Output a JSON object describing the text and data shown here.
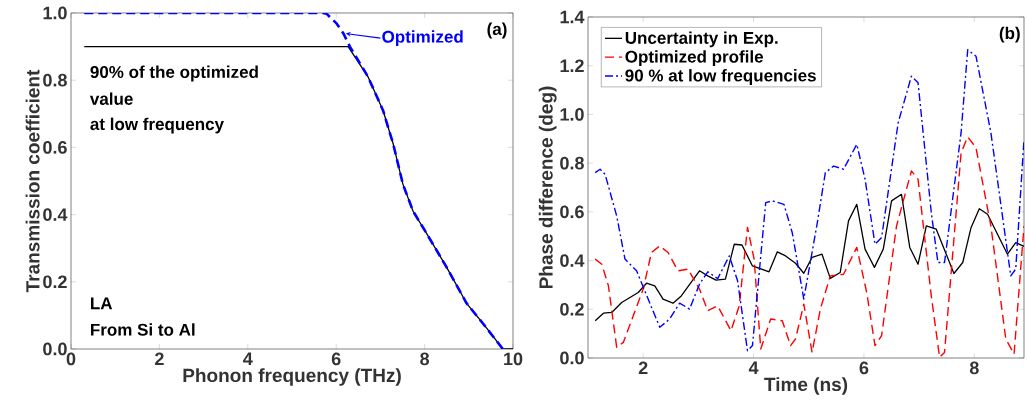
{
  "chart_data": [
    {
      "type": "line",
      "xlabel": "Phonon frequency (THz)",
      "ylabel": "Transmission coefficient",
      "xlim": [
        0,
        10
      ],
      "ylim": [
        0,
        1
      ],
      "xticks": [
        0,
        2,
        4,
        6,
        8,
        10
      ],
      "yticks": [
        {
          "value": 0,
          "label": "0.0"
        },
        {
          "value": 0.2,
          "label": "0.2"
        },
        {
          "value": 0.4,
          "label": "0.4"
        },
        {
          "value": 0.6,
          "label": "0.6"
        },
        {
          "value": 0.8,
          "label": "0.8"
        },
        {
          "value": 1,
          "label": "1.0"
        }
      ],
      "series": [
        {
          "color": "#000000",
          "line_style": "solid",
          "x": [
            0.3,
            6.27,
            6.72,
            7.06,
            7.29,
            7.51,
            7.74,
            8.04,
            8.49,
            8.95,
            9.32,
            9.77,
            10.0
          ],
          "values": [
            0.9,
            0.9,
            0.81,
            0.71,
            0.61,
            0.49,
            0.41,
            0.345,
            0.245,
            0.136,
            0.076,
            0.0,
            0.0
          ]
        },
        {
          "color": "#0000ff",
          "line_style": "dashed",
          "x": [
            0.3,
            5.7,
            5.78,
            6.0,
            6.16,
            6.31,
            6.72,
            7.06,
            7.29,
            7.51,
            7.74,
            8.04,
            8.49,
            8.95,
            9.32,
            9.77
          ],
          "values": [
            1.0,
            1.0,
            0.998,
            0.97,
            0.94,
            0.9,
            0.81,
            0.71,
            0.61,
            0.49,
            0.41,
            0.345,
            0.245,
            0.136,
            0.076,
            0.0
          ]
        }
      ],
      "annotations": [
        "(a)",
        {
          "text": "Optimized",
          "x": 6.15,
          "y": 0.94
        },
        "90% of the optimized",
        "value",
        "at low frequency",
        "LA",
        "From Si to Al"
      ]
    },
    {
      "type": "line",
      "xlabel": "Time (ns)",
      "ylabel": "Phase difference (deg)",
      "xlim": [
        1,
        8.9
      ],
      "ylim": [
        0,
        1.4
      ],
      "xticks": [
        2,
        4,
        6,
        8
      ],
      "yticks": [
        {
          "value": 0,
          "label": "0.0"
        },
        {
          "value": 0.2,
          "label": "0.2"
        },
        {
          "value": 0.4,
          "label": "0.4"
        },
        {
          "value": 0.6,
          "label": "0.6"
        },
        {
          "value": 0.8,
          "label": "0.8"
        },
        {
          "value": 1,
          "label": "1.0"
        },
        {
          "value": 1.2,
          "label": "1.2"
        },
        {
          "value": 1.4,
          "label": "1.4"
        }
      ],
      "legend": "top left",
      "series": [
        {
          "name": "Uncertainty in Exp.",
          "color": "#000000",
          "line_style": "solid",
          "x": [
            1.13,
            1.28,
            1.43,
            1.61,
            1.91,
            2.06,
            2.21,
            2.36,
            2.54,
            2.69,
            3.02,
            3.17,
            3.32,
            3.49,
            3.65,
            3.79,
            3.98,
            4.28,
            4.43,
            4.58,
            4.76,
            4.91,
            5.06,
            5.24,
            5.39,
            5.57,
            5.72,
            5.87,
            6.02,
            6.19,
            6.35,
            6.5,
            6.68,
            6.83,
            6.98,
            7.13,
            7.31,
            7.63,
            7.79,
            7.94,
            8.09,
            8.24,
            8.6,
            8.75,
            8.9
          ],
          "values": [
            0.153,
            0.184,
            0.187,
            0.228,
            0.269,
            0.307,
            0.296,
            0.242,
            0.225,
            0.255,
            0.358,
            0.337,
            0.32,
            0.324,
            0.467,
            0.464,
            0.378,
            0.354,
            0.436,
            0.419,
            0.389,
            0.348,
            0.413,
            0.426,
            0.327,
            0.351,
            0.563,
            0.631,
            0.447,
            0.372,
            0.447,
            0.645,
            0.672,
            0.454,
            0.385,
            0.542,
            0.529,
            0.347,
            0.392,
            0.535,
            0.613,
            0.59,
            0.426,
            0.474,
            0.458
          ]
        },
        {
          "name": "Optimized profile",
          "color": "#ff0000",
          "line_style": "dashed",
          "x": [
            1.13,
            1.25,
            1.37,
            1.52,
            1.64,
            1.82,
            2.0,
            2.15,
            2.3,
            2.45,
            2.63,
            2.81,
            3.02,
            3.17,
            3.35,
            3.59,
            3.74,
            3.89,
            4.01,
            4.13,
            4.31,
            4.52,
            4.67,
            4.76,
            4.91,
            5.06,
            5.21,
            5.39,
            5.63,
            5.87,
            6.05,
            6.2,
            6.32,
            6.59,
            6.86,
            6.98,
            7.22,
            7.37,
            7.46,
            7.76,
            7.88,
            8.03,
            8.3,
            8.57,
            8.72,
            8.9
          ],
          "values": [
            0.406,
            0.385,
            0.296,
            0.044,
            0.064,
            0.173,
            0.283,
            0.433,
            0.46,
            0.433,
            0.358,
            0.365,
            0.283,
            0.194,
            0.214,
            0.112,
            0.214,
            0.536,
            0.406,
            0.037,
            0.16,
            0.153,
            0.051,
            0.078,
            0.221,
            0.023,
            0.201,
            0.337,
            0.344,
            0.454,
            0.269,
            0.051,
            0.092,
            0.542,
            0.768,
            0.734,
            0.255,
            0.003,
            0.023,
            0.843,
            0.908,
            0.863,
            0.542,
            0.078,
            0.016,
            0.542
          ]
        },
        {
          "name": "90 % at low frequencies",
          "color": "#0000ff",
          "line_style": "dashdot",
          "x": [
            1.13,
            1.22,
            1.31,
            1.52,
            1.67,
            1.88,
            2.09,
            2.3,
            2.48,
            2.66,
            2.84,
            3.02,
            3.17,
            3.35,
            3.56,
            3.71,
            3.89,
            3.98,
            4.22,
            4.34,
            4.55,
            4.7,
            4.91,
            5.15,
            5.3,
            5.45,
            5.63,
            5.87,
            6.02,
            6.2,
            6.32,
            6.62,
            6.86,
            6.98,
            7.22,
            7.34,
            7.46,
            7.76,
            7.88,
            8.03,
            8.3,
            8.66,
            8.75,
            8.9
          ],
          "values": [
            0.761,
            0.775,
            0.754,
            0.583,
            0.406,
            0.358,
            0.242,
            0.126,
            0.16,
            0.225,
            0.201,
            0.303,
            0.354,
            0.326,
            0.419,
            0.317,
            0.03,
            0.051,
            0.638,
            0.645,
            0.631,
            0.515,
            0.242,
            0.549,
            0.761,
            0.788,
            0.775,
            0.877,
            0.734,
            0.467,
            0.495,
            0.966,
            1.157,
            1.13,
            0.597,
            0.392,
            0.392,
            0.925,
            1.266,
            1.239,
            0.925,
            0.337,
            0.365,
            0.898
          ]
        }
      ],
      "annotations": [
        "(b)"
      ]
    }
  ]
}
